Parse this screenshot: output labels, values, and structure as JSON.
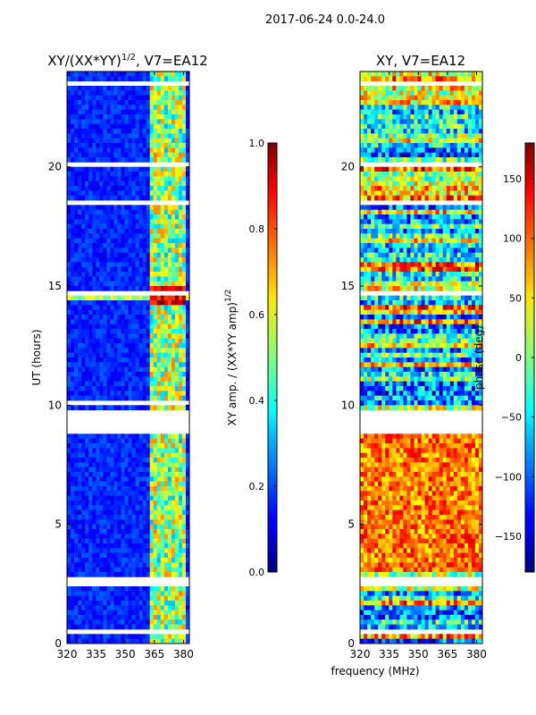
{
  "figure_title": "2017-06-24 0.0-24.0",
  "xlabel_shared": "frequency (MHz)",
  "chart_data": [
    {
      "type": "heatmap",
      "title_main": "XY/(XX*YY)",
      "title_sup": "1/2",
      "title_tail": ", V7=EA12",
      "ylabel": "UT (hours)",
      "xlim": [
        320,
        383
      ],
      "ylim": [
        0,
        24
      ],
      "xticks": [
        320,
        335,
        350,
        365,
        380
      ],
      "yticks": [
        0,
        5,
        10,
        15,
        20
      ],
      "colorbar": {
        "label_main": "XY amp. / (XX*YY amp)",
        "label_sup": "1/2",
        "range": [
          0.0,
          1.0
        ],
        "ticks": [
          "0.0",
          "0.2",
          "0.4",
          "0.6",
          "0.8",
          "1.0"
        ],
        "colormap": "jet"
      },
      "gap_hours": [
        [
          8.9,
          9.7
        ],
        [
          10.0,
          10.1
        ],
        [
          14.6,
          14.7
        ],
        [
          18.4,
          18.6
        ],
        [
          20.0,
          20.2
        ],
        [
          23.4,
          23.6
        ],
        [
          2.5,
          2.7
        ],
        [
          0.4,
          0.5
        ]
      ],
      "highlight_band_mhz": [
        362,
        382
      ],
      "bright_row_hour": 14.6
    },
    {
      "type": "heatmap",
      "title": "XY, V7=EA12",
      "xlim": [
        320,
        383
      ],
      "ylim": [
        0,
        24
      ],
      "xticks": [
        320,
        335,
        350,
        365,
        380
      ],
      "yticks": [
        0,
        5,
        10,
        15,
        20
      ],
      "colorbar": {
        "label": "phase (deg)",
        "range": [
          -180,
          180
        ],
        "ticks": [
          "-150",
          "-100",
          "-50",
          "0",
          "50",
          "100",
          "150"
        ],
        "colormap": "jet"
      },
      "gap_hours": [
        [
          8.9,
          9.7
        ],
        [
          14.6,
          14.7
        ],
        [
          18.4,
          18.6
        ],
        [
          20.0,
          20.2
        ],
        [
          23.4,
          23.6
        ],
        [
          2.5,
          2.7
        ],
        [
          0.4,
          0.5
        ]
      ]
    }
  ]
}
